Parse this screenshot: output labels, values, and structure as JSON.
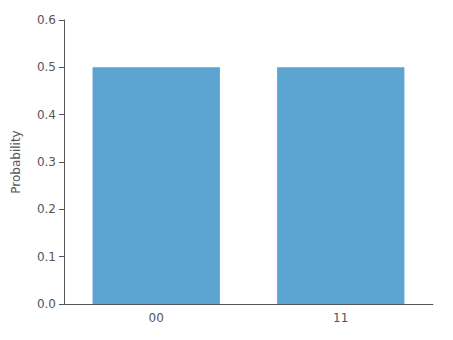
{
  "chart_data": {
    "type": "bar",
    "categories": [
      "00",
      "11"
    ],
    "values": [
      0.5,
      0.5
    ],
    "color": "#5ba3d0",
    "ylabel": "Probability",
    "ylim": [
      0,
      0.6
    ],
    "yticks": [
      {
        "value": 0,
        "label": "0.0"
      },
      0.1,
      0.2,
      0.3,
      0.4,
      0.5,
      0.6
    ],
    "grid": false
  }
}
